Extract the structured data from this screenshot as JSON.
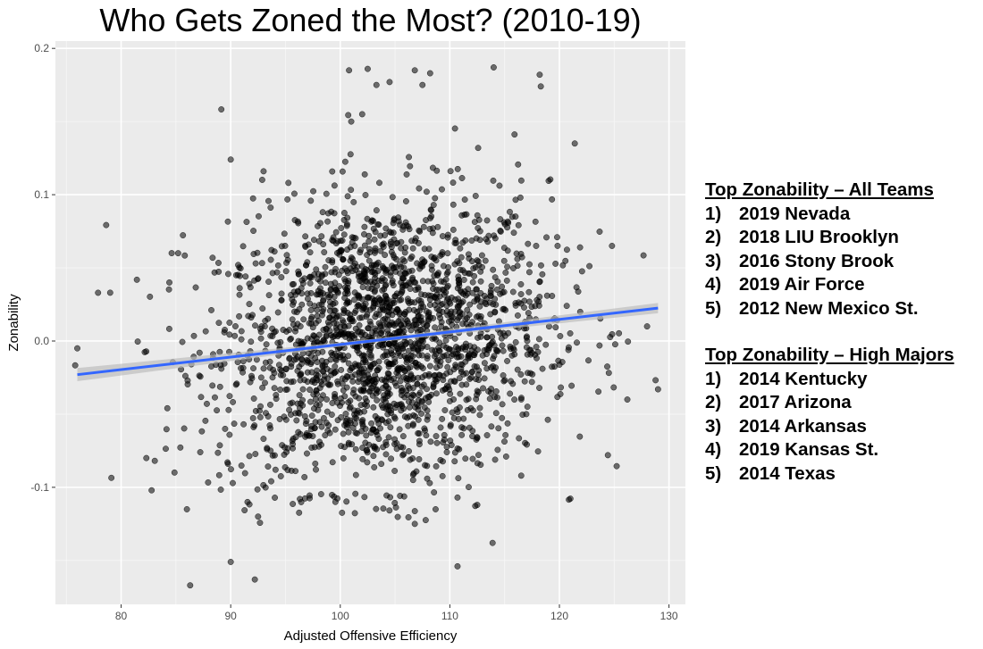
{
  "chart_data": {
    "type": "scatter",
    "title": "Who Gets Zoned the Most? (2010-19)",
    "xlabel": "Adjusted Offensive Efficiency",
    "ylabel": "Zonability",
    "xlim": [
      74,
      131.5
    ],
    "ylim": [
      -0.18,
      0.205
    ],
    "x_ticks": [
      80,
      90,
      100,
      110,
      120,
      130
    ],
    "y_ticks": [
      -0.1,
      0.0,
      0.1,
      0.2
    ],
    "x_tick_labels": [
      "80",
      "90",
      "100",
      "110",
      "120",
      "130"
    ],
    "y_tick_labels": [
      "-0.1",
      "0.0",
      "0.1",
      "0.2"
    ],
    "grid": true,
    "panel_background": "#ebebeb",
    "point_color": "#000000",
    "point_opacity": 0.55,
    "trend_line": {
      "color": "#3366ff",
      "band_color": "#bdbdbd",
      "x": [
        76,
        129
      ],
      "y": [
        -0.023,
        0.0225
      ],
      "band_halfwidth": [
        0.0045,
        0.0035
      ]
    },
    "point_cloud_center": [
      104,
      0.0
    ],
    "point_cloud_spread": [
      7.5,
      0.048
    ],
    "point_cloud_count": 2200,
    "points": [
      [
        76,
        -0.005
      ],
      [
        79,
        0.033
      ],
      [
        82.3,
        -0.08
      ],
      [
        86.3,
        -0.167
      ],
      [
        86,
        -0.115
      ],
      [
        90,
        -0.151
      ],
      [
        92.2,
        -0.163
      ],
      [
        90,
        0.124
      ],
      [
        92.5,
        -0.12
      ],
      [
        93,
        0.116
      ],
      [
        100.8,
        0.185
      ],
      [
        102.5,
        0.186
      ],
      [
        103.3,
        0.175
      ],
      [
        106.8,
        0.185
      ],
      [
        107.5,
        0.175
      ],
      [
        108.2,
        0.183
      ],
      [
        114,
        0.187
      ],
      [
        118.2,
        0.182
      ],
      [
        118.3,
        0.174
      ],
      [
        121.4,
        0.135
      ],
      [
        104.5,
        0.177
      ],
      [
        101,
        0.15
      ],
      [
        102,
        0.155
      ],
      [
        110.7,
        -0.154
      ],
      [
        113.9,
        -0.138
      ],
      [
        106.8,
        -0.125
      ],
      [
        110.7,
        -0.107
      ],
      [
        112.5,
        -0.112
      ],
      [
        108.7,
        -0.115
      ],
      [
        129,
        -0.033
      ],
      [
        128,
        0.01
      ],
      [
        126.2,
        -0.04
      ],
      [
        124.8,
        0.065
      ],
      [
        84.4,
        0.04
      ],
      [
        85.2,
        0.06
      ]
    ]
  },
  "side_panel": {
    "all_teams": {
      "heading": "Top Zonability – All Teams",
      "items": [
        {
          "rank": "1)",
          "name": "2019 Nevada"
        },
        {
          "rank": "2)",
          "name": "2018 LIU Brooklyn"
        },
        {
          "rank": "3)",
          "name": "2016 Stony Brook"
        },
        {
          "rank": "4)",
          "name": "2019 Air Force"
        },
        {
          "rank": "5)",
          "name": "2012 New Mexico St."
        }
      ]
    },
    "high_majors": {
      "heading": "Top Zonability – High Majors",
      "items": [
        {
          "rank": "1)",
          "name": "2014 Kentucky"
        },
        {
          "rank": "2)",
          "name": "2017 Arizona"
        },
        {
          "rank": "3)",
          "name": "2014 Arkansas"
        },
        {
          "rank": "4)",
          "name": "2019 Kansas St."
        },
        {
          "rank": "5)",
          "name": "2014 Texas"
        }
      ]
    }
  }
}
